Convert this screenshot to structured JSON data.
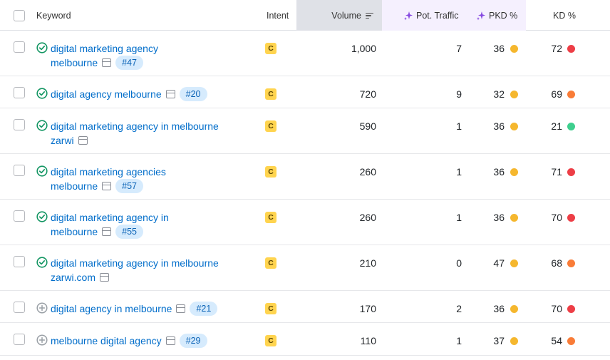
{
  "header": {
    "keyword": "Keyword",
    "intent": "Intent",
    "volume": "Volume",
    "pot_traffic": "Pot. Traffic",
    "pkd": "PKD %",
    "kd": "KD %"
  },
  "colors": {
    "intent_badge": "#ffd44f",
    "pkd_dot": "#f5b72e",
    "kd_red": "#ed3e46",
    "kd_orange": "#f97c38",
    "kd_green": "#3fcf8e",
    "link": "#006dca",
    "status_green": "#149663",
    "status_gray": "#9aa0a6"
  },
  "rows": [
    {
      "status": "ranked",
      "kw1": "digital marketing agency",
      "kw2": "melbourne",
      "rank": "#47",
      "intent": "C",
      "volume": "1,000",
      "traffic": "7",
      "pkd": "36",
      "kd": "72",
      "kd_color": "red"
    },
    {
      "status": "ranked",
      "kw1": "digital agency melbourne",
      "kw2": "",
      "rank": "#20",
      "intent": "C",
      "volume": "720",
      "traffic": "9",
      "pkd": "32",
      "kd": "69",
      "kd_color": "orange"
    },
    {
      "status": "ranked",
      "kw1": "digital marketing agency in melbourne",
      "kw2": "zarwi",
      "rank": "",
      "intent": "C",
      "volume": "590",
      "traffic": "1",
      "pkd": "36",
      "kd": "21",
      "kd_color": "green"
    },
    {
      "status": "ranked",
      "kw1": "digital marketing agencies",
      "kw2": "melbourne",
      "rank": "#57",
      "intent": "C",
      "volume": "260",
      "traffic": "1",
      "pkd": "36",
      "kd": "71",
      "kd_color": "red"
    },
    {
      "status": "ranked",
      "kw1": "digital marketing agency in",
      "kw2": "melbourne",
      "rank": "#55",
      "intent": "C",
      "volume": "260",
      "traffic": "1",
      "pkd": "36",
      "kd": "70",
      "kd_color": "red"
    },
    {
      "status": "ranked",
      "kw1": "digital marketing agency in melbourne",
      "kw2": "zarwi.com",
      "rank": "",
      "intent": "C",
      "volume": "210",
      "traffic": "0",
      "pkd": "47",
      "kd": "68",
      "kd_color": "orange"
    },
    {
      "status": "add",
      "kw1": "digital agency in melbourne",
      "kw2": "",
      "rank": "#21",
      "intent": "C",
      "volume": "170",
      "traffic": "2",
      "pkd": "36",
      "kd": "70",
      "kd_color": "red"
    },
    {
      "status": "add",
      "kw1": "melbourne digital agency",
      "kw2": "",
      "rank": "#29",
      "intent": "C",
      "volume": "110",
      "traffic": "1",
      "pkd": "37",
      "kd": "54",
      "kd_color": "orange"
    }
  ]
}
